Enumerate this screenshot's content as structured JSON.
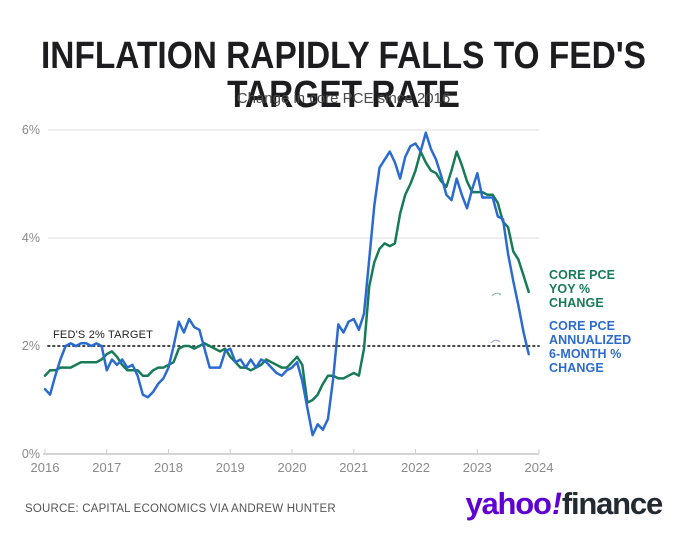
{
  "header": {
    "title": "INFLATION RAPIDLY FALLS TO FED'S TARGET RATE",
    "subtitle": "Change in core PCE since 2016"
  },
  "chart_data": {
    "type": "line",
    "title": "INFLATION RAPIDLY FALLS TO FED'S TARGET RATE",
    "subtitle": "Change in core PCE since 2016",
    "x_start": "2016-01",
    "frequency": "monthly",
    "unit": "percent",
    "ylim": [
      0,
      6
    ],
    "yticks": [
      "0%",
      "2%",
      "4%",
      "6%"
    ],
    "xticks": [
      "2016",
      "2017",
      "2018",
      "2019",
      "2020",
      "2021",
      "2022",
      "2023",
      "2024"
    ],
    "grid": "horizontal",
    "legend_position": "right",
    "target_line": {
      "value": 2,
      "label": "FED'S 2% TARGET",
      "style": "dotted",
      "color": "#2b2b2b"
    },
    "series": [
      {
        "name": "CORE PCE YOY % CHANGE",
        "color": "#177B57",
        "values": [
          1.45,
          1.55,
          1.55,
          1.6,
          1.6,
          1.6,
          1.65,
          1.7,
          1.7,
          1.7,
          1.7,
          1.75,
          1.85,
          1.9,
          1.8,
          1.65,
          1.55,
          1.55,
          1.55,
          1.45,
          1.45,
          1.55,
          1.6,
          1.6,
          1.65,
          1.7,
          1.95,
          2.0,
          2.0,
          1.95,
          2.0,
          2.05,
          2.0,
          1.95,
          1.9,
          1.95,
          1.8,
          1.7,
          1.6,
          1.6,
          1.55,
          1.6,
          1.65,
          1.75,
          1.7,
          1.65,
          1.6,
          1.6,
          1.7,
          1.8,
          1.65,
          0.95,
          1.0,
          1.1,
          1.3,
          1.45,
          1.45,
          1.4,
          1.4,
          1.45,
          1.5,
          1.45,
          1.95,
          3.1,
          3.55,
          3.8,
          3.9,
          3.85,
          3.9,
          4.45,
          4.8,
          5.0,
          5.25,
          5.6,
          5.4,
          5.25,
          5.2,
          5.05,
          4.95,
          5.25,
          5.6,
          5.35,
          5.05,
          4.85,
          4.85,
          4.85,
          4.8,
          4.8,
          4.65,
          4.3,
          4.2,
          3.75,
          3.6,
          3.3,
          3.0
        ]
      },
      {
        "name": "CORE PCE ANNUALIZED 6-MONTH % CHANGE",
        "color": "#2B6BCF",
        "values": [
          1.2,
          1.1,
          1.45,
          1.75,
          2.0,
          2.05,
          2.0,
          2.05,
          2.05,
          2.0,
          2.05,
          2.0,
          1.55,
          1.75,
          1.65,
          1.75,
          1.6,
          1.65,
          1.45,
          1.1,
          1.05,
          1.15,
          1.3,
          1.4,
          1.6,
          2.0,
          2.45,
          2.25,
          2.5,
          2.35,
          2.3,
          1.95,
          1.6,
          1.6,
          1.6,
          1.9,
          1.95,
          1.7,
          1.75,
          1.6,
          1.75,
          1.6,
          1.75,
          1.7,
          1.6,
          1.5,
          1.45,
          1.55,
          1.6,
          1.7,
          1.35,
          0.85,
          0.35,
          0.55,
          0.45,
          0.65,
          1.4,
          2.4,
          2.25,
          2.45,
          2.5,
          2.3,
          2.6,
          3.6,
          4.6,
          5.3,
          5.45,
          5.6,
          5.4,
          5.1,
          5.5,
          5.7,
          5.75,
          5.6,
          5.95,
          5.65,
          5.45,
          5.15,
          4.8,
          4.7,
          5.1,
          4.8,
          4.55,
          4.9,
          5.2,
          4.75,
          4.75,
          4.75,
          4.4,
          4.35,
          3.7,
          3.2,
          2.75,
          2.25,
          1.85
        ]
      }
    ]
  },
  "annotations": {
    "fed_target_label": "FED'S 2% TARGET"
  },
  "legend": {
    "series1_label": "CORE PCE\nYOY %\nCHANGE",
    "series2_label": "CORE PCE\nANNUALIZED\n6-MONTH %\nCHANGE"
  },
  "footer": {
    "source": "SOURCE: CAPITAL ECONOMICS VIA ANDREW HUNTER",
    "logo_part1": "yahoo",
    "logo_bang": "!",
    "logo_part2": "finance"
  },
  "colors": {
    "series_green": "#177B57",
    "series_blue": "#2B6BCF",
    "gridline": "#dddddd",
    "axis_text": "#8a8a8a",
    "baseline": "#bbbbbb",
    "title_text": "#1d1d1f",
    "yahoo_purple": "#5F01D2",
    "finance_dark": "#232A31"
  }
}
